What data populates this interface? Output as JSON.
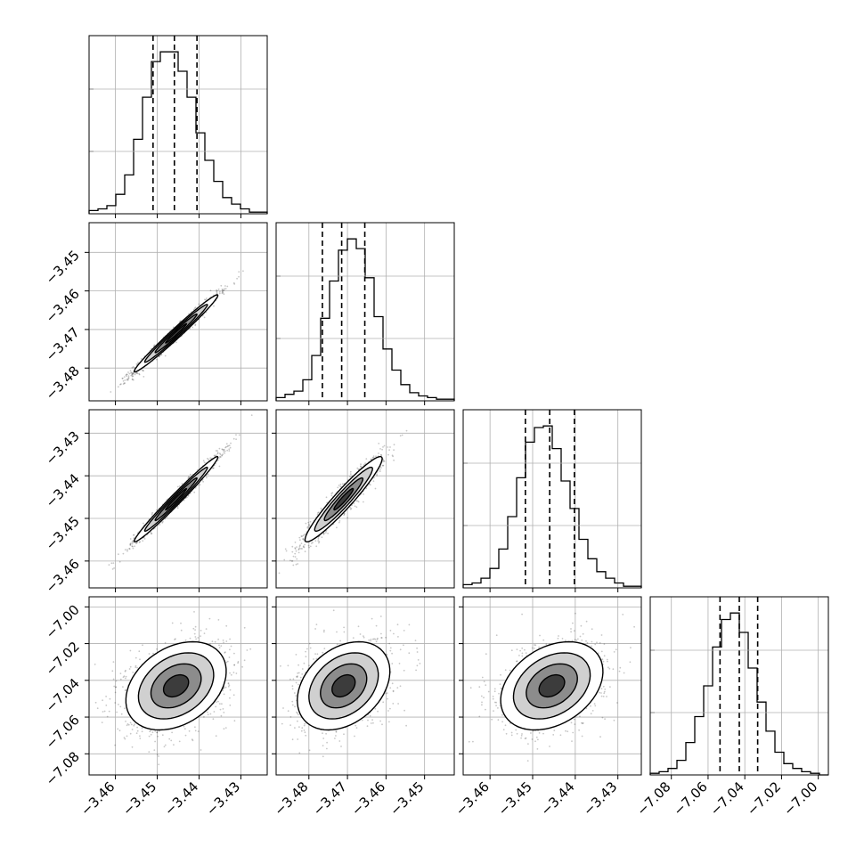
{
  "chart_data": {
    "type": "corner",
    "grid": true,
    "parameters": [
      {
        "ticks": [
          -3.46,
          -3.45,
          -3.44,
          -3.43
        ],
        "tick_labels": [
          "−3.46",
          "−3.45",
          "−3.44",
          "−3.43"
        ],
        "range": [
          -3.4663,
          -3.4237
        ]
      },
      {
        "ticks": [
          -3.48,
          -3.47,
          -3.46,
          -3.45
        ],
        "tick_labels": [
          "−3.48",
          "−3.47",
          "−3.46",
          "−3.45"
        ],
        "range": [
          -3.4885,
          -3.4423
        ]
      },
      {
        "ticks": [
          -3.46,
          -3.45,
          -3.44,
          -3.43
        ],
        "tick_labels": [
          "−3.46",
          "−3.45",
          "−3.44",
          "−3.43"
        ],
        "range": [
          -3.4663,
          -3.4245
        ]
      },
      {
        "ticks": [
          -7.08,
          -7.06,
          -7.04,
          -7.02,
          -7.0
        ],
        "tick_labels": [
          "−7.08",
          "−7.06",
          "−7.04",
          "−7.02",
          "−7.00"
        ],
        "range": [
          -7.0915,
          -6.9945
        ]
      }
    ],
    "marginals": [
      {
        "quantiles": [
          -3.451,
          -3.4459,
          -3.4405
        ],
        "edges_range": [
          -3.4663,
          -3.4237
        ],
        "counts": [
          2,
          3,
          5,
          12,
          24,
          46,
          72,
          94,
          100,
          100,
          88,
          72,
          50,
          33,
          20,
          10,
          6,
          3,
          1,
          1
        ]
      },
      {
        "quantiles": [
          -3.4765,
          -3.4715,
          -3.4655
        ],
        "edges_range": [
          -3.4885,
          -3.4423
        ],
        "counts": [
          2,
          4,
          6,
          13,
          28,
          51,
          74,
          93,
          100,
          94,
          76,
          52,
          32,
          19,
          10,
          5,
          3,
          2,
          1,
          1
        ]
      },
      {
        "quantiles": [
          -3.4517,
          -3.446,
          -3.4402
        ],
        "edges_range": [
          -3.4663,
          -3.4245
        ],
        "counts": [
          2,
          3,
          6,
          12,
          24,
          44,
          68,
          90,
          99,
          100,
          86,
          66,
          49,
          30,
          18,
          10,
          6,
          3,
          1,
          1
        ]
      },
      {
        "quantiles": [
          -7.0535,
          -7.043,
          -7.033
        ],
        "edges_range": [
          -7.0915,
          -6.9945
        ],
        "counts": [
          1,
          2,
          4,
          9,
          20,
          36,
          55,
          79,
          96,
          100,
          88,
          66,
          45,
          27,
          14,
          7,
          4,
          2,
          1,
          0
        ]
      }
    ],
    "joint": [
      {
        "x": 0,
        "y": 1,
        "mean": [
          -3.4455,
          -3.471
        ],
        "sigma": [
          0.005,
          0.005
        ],
        "rho": 0.985
      },
      {
        "x": 0,
        "y": 2,
        "mean": [
          -3.4455,
          -3.4455
        ],
        "sigma": [
          0.005,
          0.005
        ],
        "rho": 0.985
      },
      {
        "x": 1,
        "y": 2,
        "mean": [
          -3.471,
          -3.4455
        ],
        "sigma": [
          0.005,
          0.005
        ],
        "rho": 0.95
      },
      {
        "x": 0,
        "y": 3,
        "mean": [
          -3.4455,
          -7.043
        ],
        "sigma": [
          0.006,
          0.012
        ],
        "rho": 0.33
      },
      {
        "x": 1,
        "y": 3,
        "mean": [
          -3.471,
          -7.043
        ],
        "sigma": [
          0.006,
          0.012
        ],
        "rho": 0.33
      },
      {
        "x": 2,
        "y": 3,
        "mean": [
          -3.4455,
          -7.043
        ],
        "sigma": [
          0.006,
          0.012
        ],
        "rho": 0.33
      }
    ],
    "contour_levels_sigma": [
      0.5,
      1.0,
      1.5,
      2.0
    ]
  }
}
